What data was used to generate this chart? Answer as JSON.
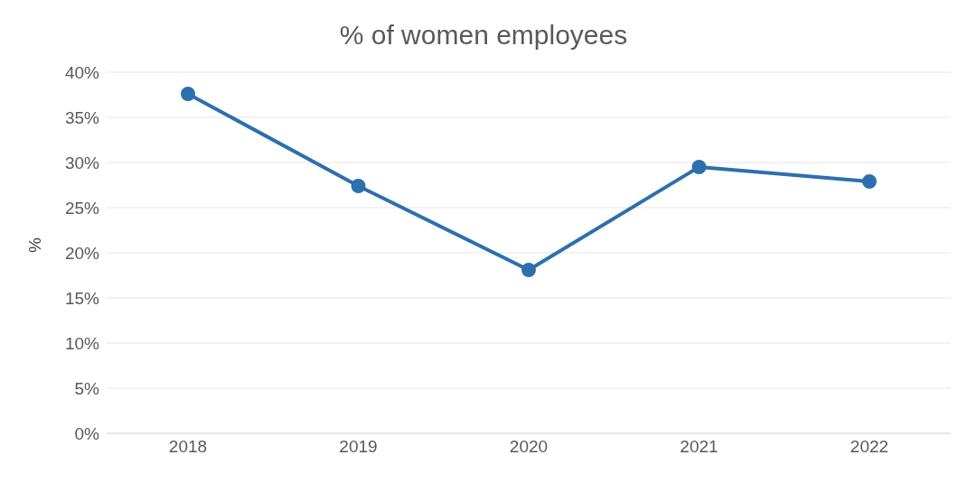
{
  "chart_data": {
    "type": "line",
    "title": "% of women employees",
    "ylabel": "%",
    "categories": [
      "2018",
      "2019",
      "2020",
      "2021",
      "2022"
    ],
    "series": [
      {
        "color": "#2e6fad",
        "values": [
          37.6,
          27.4,
          18.1,
          29.5,
          27.9
        ]
      }
    ],
    "ylim": [
      0,
      40
    ],
    "yticks": [
      {
        "value": 0,
        "label": "0%"
      },
      {
        "value": 5,
        "label": "5%"
      },
      {
        "value": 10,
        "label": "10%"
      },
      {
        "value": 15,
        "label": "15%"
      },
      {
        "value": 20,
        "label": "20%"
      },
      {
        "value": 25,
        "label": "25%"
      },
      {
        "value": 30,
        "label": "30%"
      },
      {
        "value": 35,
        "label": "35%"
      },
      {
        "value": 40,
        "label": "40%"
      }
    ],
    "grid": "y",
    "marker": "circle",
    "line_style": "solid",
    "legend": false
  }
}
